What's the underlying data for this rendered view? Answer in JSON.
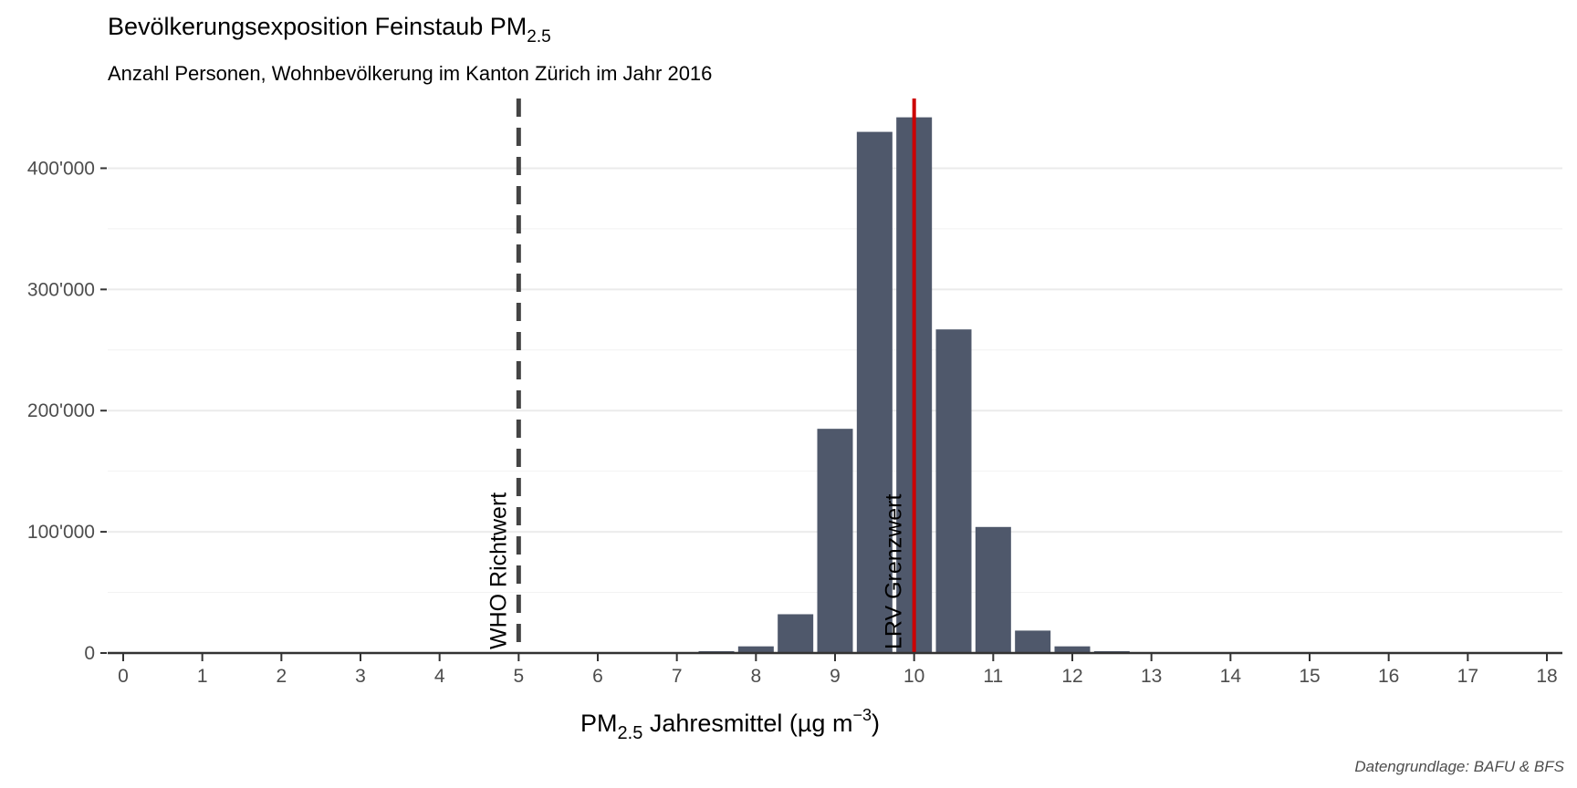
{
  "chart_data": {
    "type": "bar",
    "title": "Bevölkerungsexposition Feinstaub PM",
    "title_sub": "2.5",
    "subtitle": "Anzahl Personen, Wohnbevölkerung im Kanton Zürich im Jahr 2016",
    "xlabel_parts": {
      "pre": "PM",
      "sub": "2.5",
      "mid": " Jahresmittel (µg m",
      "sup": "−3",
      "post": ")"
    },
    "caption": "Datengrundlage: BAFU & BFS",
    "xlim": [
      0,
      18
    ],
    "ylim": [
      0,
      450000
    ],
    "x_ticks": [
      0,
      1,
      2,
      3,
      4,
      5,
      6,
      7,
      8,
      9,
      10,
      11,
      12,
      13,
      14,
      15,
      16,
      17,
      18
    ],
    "x_tick_labels": [
      "0",
      "1",
      "2",
      "3",
      "4",
      "5",
      "6",
      "7",
      "8",
      "9",
      "10",
      "11",
      "12",
      "13",
      "14",
      "15",
      "16",
      "17",
      "18"
    ],
    "y_ticks": [
      0,
      100000,
      200000,
      300000,
      400000
    ],
    "y_tick_labels": [
      "0",
      "100'000",
      "200'000",
      "300'000",
      "400'000"
    ],
    "bar_width": 0.5,
    "bars": [
      {
        "x": 7.0,
        "value": 700
      },
      {
        "x": 7.5,
        "value": 1500
      },
      {
        "x": 8.0,
        "value": 5500
      },
      {
        "x": 8.5,
        "value": 32000
      },
      {
        "x": 9.0,
        "value": 185000
      },
      {
        "x": 9.5,
        "value": 430000
      },
      {
        "x": 10.0,
        "value": 442000
      },
      {
        "x": 10.5,
        "value": 267000
      },
      {
        "x": 11.0,
        "value": 104000
      },
      {
        "x": 11.5,
        "value": 18500
      },
      {
        "x": 12.0,
        "value": 5500
      },
      {
        "x": 12.5,
        "value": 1500
      },
      {
        "x": 13.0,
        "value": 600
      }
    ],
    "bar_color": "#4f586b",
    "reference_lines": [
      {
        "x": 5,
        "label": "WHO Richtwert",
        "color": "#444444",
        "style": "dashed"
      },
      {
        "x": 10,
        "label": "LRV Grenzwert",
        "color": "#cc0000",
        "style": "solid"
      }
    ],
    "grid": true,
    "legend": "none"
  }
}
